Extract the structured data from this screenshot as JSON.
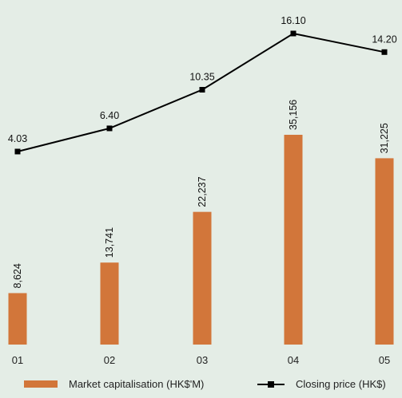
{
  "chart_data": {
    "type": "bar",
    "categories": [
      "01",
      "02",
      "03",
      "04",
      "05"
    ],
    "series": [
      {
        "name": "Market capitalisation (HK$'M)",
        "type": "bar",
        "values": [
          8624,
          13741,
          22237,
          35156,
          31225
        ],
        "labels": [
          "8,624",
          "13,741",
          "22,237",
          "35,156",
          "31,225"
        ],
        "color": "#d2763a"
      },
      {
        "name": "Closing price (HK$)",
        "type": "line",
        "values": [
          4.03,
          6.4,
          10.35,
          16.1,
          14.2
        ],
        "labels": [
          "4.03",
          "6.40",
          "10.35",
          "16.10",
          "14.20"
        ],
        "color": "#000000"
      }
    ],
    "grid": false,
    "legend_position": "bottom"
  },
  "legend": {
    "bar_label": "Market capitalisation (HK$'M)",
    "line_label": "Closing price (HK$)"
  }
}
